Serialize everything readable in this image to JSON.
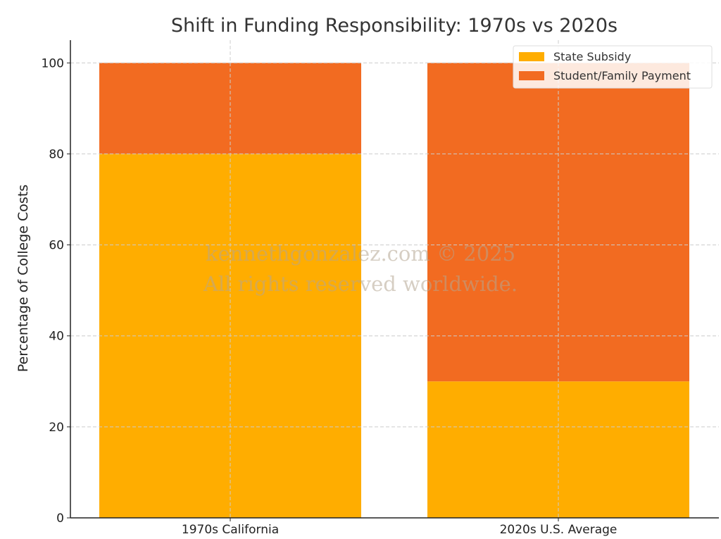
{
  "chart_data": {
    "type": "bar",
    "stacked": true,
    "title": "Shift in Funding Responsibility: 1970s vs 2020s",
    "xlabel": "",
    "ylabel": "Percentage of College Costs",
    "categories": [
      "1970s California",
      "2020s U.S. Average"
    ],
    "series": [
      {
        "name": "State Subsidy",
        "color": "#ffad00",
        "values": [
          80,
          30
        ]
      },
      {
        "name": "Student/Family Payment",
        "color": "#f26b21",
        "values": [
          20,
          70
        ]
      }
    ],
    "ylim": [
      0,
      105
    ],
    "yticks": [
      0,
      20,
      40,
      60,
      80,
      100
    ],
    "grid": true,
    "legend_position": "top-right"
  },
  "watermark": {
    "line1": "kennethgonzalez.com © 2025",
    "line2": "All rights reserved worldwide."
  }
}
